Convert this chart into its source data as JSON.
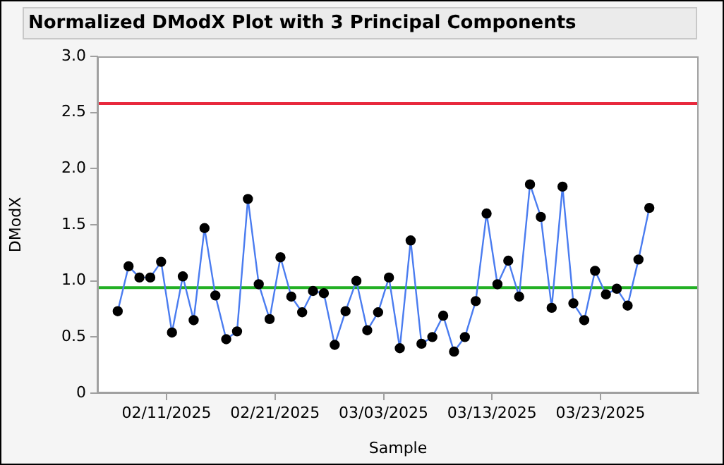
{
  "chart_data": {
    "type": "line",
    "title": "Normalized DModX Plot with 3 Principal Components",
    "xlabel": "Sample",
    "ylabel": "DModX",
    "x": [
      "2025-02-06T12:00",
      "2025-02-07T12:00",
      "2025-02-08T12:00",
      "2025-02-09T12:00",
      "2025-02-10T12:00",
      "2025-02-11T12:00",
      "2025-02-12T12:00",
      "2025-02-13T12:00",
      "2025-02-14T12:00",
      "2025-02-15T12:00",
      "2025-02-16T12:00",
      "2025-02-17T12:00",
      "2025-02-18T12:00",
      "2025-02-19T12:00",
      "2025-02-20T12:00",
      "2025-02-21T12:00",
      "2025-02-22T12:00",
      "2025-02-23T12:00",
      "2025-02-24T12:00",
      "2025-02-25T12:00",
      "2025-02-26T12:00",
      "2025-02-27T12:00",
      "2025-02-28T12:00",
      "2025-03-01T12:00",
      "2025-03-02T12:00",
      "2025-03-03T12:00",
      "2025-03-04T12:00",
      "2025-03-05T12:00",
      "2025-03-06T12:00",
      "2025-03-07T12:00",
      "2025-03-08T12:00",
      "2025-03-09T12:00",
      "2025-03-10T12:00",
      "2025-03-11T12:00",
      "2025-03-12T12:00",
      "2025-03-13T12:00",
      "2025-03-14T12:00",
      "2025-03-15T12:00",
      "2025-03-16T12:00",
      "2025-03-17T12:00",
      "2025-03-18T12:00",
      "2025-03-19T12:00",
      "2025-03-20T12:00",
      "2025-03-21T12:00",
      "2025-03-22T12:00",
      "2025-03-23T12:00",
      "2025-03-24T12:00",
      "2025-03-25T12:00",
      "2025-03-26T12:00",
      "2025-03-27T12:00"
    ],
    "series": [
      {
        "color": "#4a7cf0",
        "values": [
          0.73,
          1.13,
          1.03,
          1.03,
          1.17,
          0.54,
          1.04,
          0.65,
          1.47,
          0.87,
          0.48,
          0.55,
          1.73,
          0.97,
          0.66,
          1.21,
          0.86,
          0.72,
          0.91,
          0.89,
          0.43,
          0.73,
          1.0,
          0.56,
          0.72,
          1.03,
          0.4,
          1.36,
          0.44,
          0.5,
          0.69,
          0.37,
          0.5,
          0.82,
          1.6,
          0.97,
          1.18,
          0.86,
          1.86,
          1.57,
          0.76,
          1.84,
          0.8,
          0.65,
          1.09,
          0.88,
          0.93,
          0.78,
          1.19,
          1.65
        ]
      }
    ],
    "xlim": [
      "2025-02-04T15:00",
      "2025-04-01T01:00"
    ],
    "xticks": [
      {
        "value": "2025-02-11",
        "label": "02/11/2025"
      },
      {
        "value": "2025-02-21",
        "label": "02/21/2025"
      },
      {
        "value": "2025-03-03",
        "label": "03/03/2025"
      },
      {
        "value": "2025-03-13",
        "label": "03/13/2025"
      },
      {
        "value": "2025-03-23",
        "label": "03/23/2025"
      }
    ],
    "ylim": [
      0,
      3
    ],
    "yticks": [
      0,
      0.5,
      {
        "value": 1,
        "label": "1.0"
      },
      1.5,
      {
        "value": 2,
        "label": "2.0"
      },
      2.5,
      {
        "value": 3,
        "label": "3.0"
      }
    ],
    "ref_lines": [
      {
        "axis": "y",
        "value": 2.58,
        "color": "#e8283c"
      },
      {
        "axis": "y",
        "value": 0.94,
        "color": "#22b024"
      }
    ],
    "marker": "circle",
    "line_style": "solid",
    "legend": false
  }
}
